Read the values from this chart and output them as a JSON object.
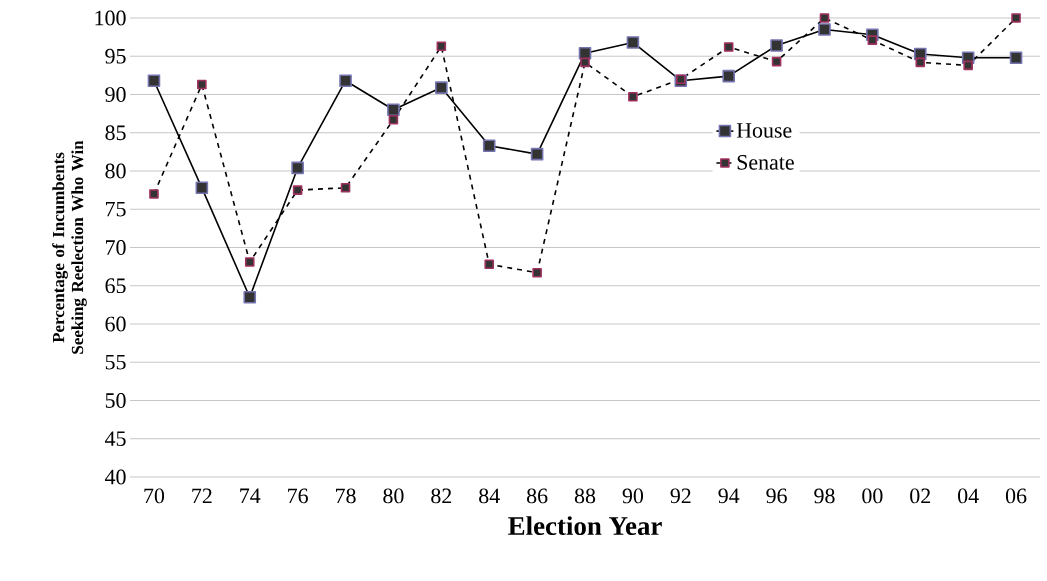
{
  "chart_data": {
    "type": "line",
    "xlabel": "Election Year",
    "ylabel": "Percentage of Incumbents Seeking Reelection Who Win",
    "categories": [
      "70",
      "72",
      "74",
      "76",
      "78",
      "80",
      "82",
      "84",
      "86",
      "88",
      "90",
      "92",
      "94",
      "96",
      "98",
      "00",
      "02",
      "04",
      "06"
    ],
    "series": [
      {
        "name": "House",
        "color": "#7474b0",
        "line_style": "solid",
        "values": [
          91.8,
          77.8,
          63.5,
          80.4,
          91.8,
          88.0,
          90.9,
          83.3,
          82.2,
          95.4,
          96.8,
          91.8,
          92.4,
          96.4,
          98.5,
          97.8,
          95.3,
          94.8,
          94.8
        ]
      },
      {
        "name": "Senate",
        "color": "#a0305f",
        "line_style": "dashed",
        "values": [
          77.0,
          91.3,
          68.1,
          77.5,
          77.8,
          86.7,
          96.3,
          67.8,
          66.7,
          94.2,
          89.7,
          92.0,
          96.2,
          94.3,
          100,
          97.1,
          94.2,
          93.8,
          100
        ]
      }
    ],
    "ylim": [
      40,
      100
    ],
    "yticks": [
      40,
      45,
      50,
      55,
      60,
      65,
      70,
      75,
      80,
      85,
      90,
      95,
      100
    ],
    "grid": "y",
    "legend": "right",
    "marker": "square"
  }
}
